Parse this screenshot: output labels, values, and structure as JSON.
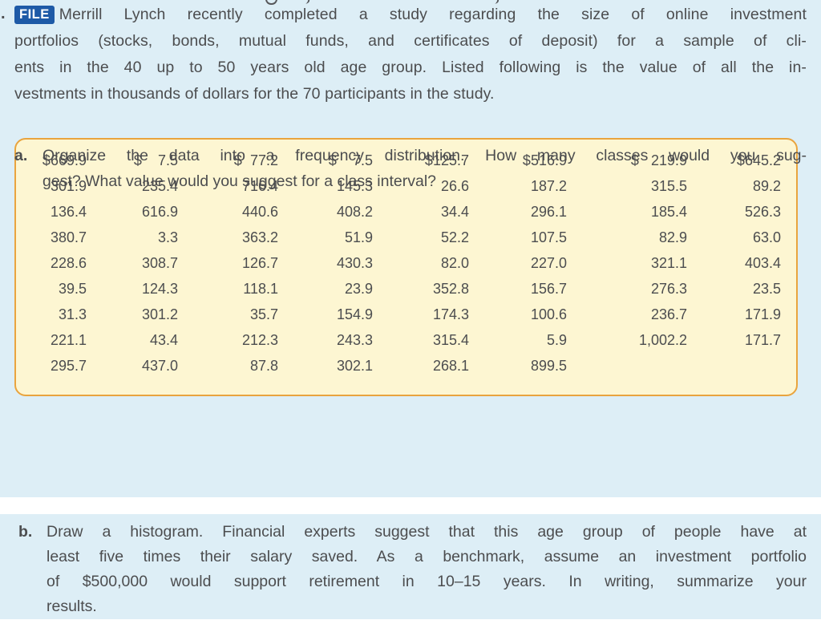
{
  "colors": {
    "section_bg": "#ddeef6",
    "badge_bg": "#1e5aa7",
    "badge_text": "#ffffff",
    "table_bg": "#fdf6d2",
    "table_border": "#e9a43e",
    "body_text": "#4c4d4f"
  },
  "intro": {
    "lead_mark": ".",
    "badge": "FILE",
    "lines": [
      "Merrill Lynch recently completed a study regarding the size of online investment",
      "portfolios (stocks, bonds, mutual funds, and certificates of deposit) for a sample of cli-",
      "ents in the 40 up to 50 years old age group. Listed following is the value of all the in-",
      "vestments in thousands of dollars for the 70 participants in the study."
    ]
  },
  "data_table": {
    "first_row": [
      {
        "sign": "$",
        "num": "669.9"
      },
      {
        "sign": "$",
        "num": "7.5"
      },
      {
        "sign": "$",
        "num": "77.2"
      },
      {
        "sign": "$",
        "num": "7.5"
      },
      {
        "sign": "$",
        "num": "125.7"
      },
      {
        "sign": "$",
        "num": "516.9"
      },
      {
        "sign": "$",
        "num": "219.9"
      },
      {
        "sign": "$",
        "num": "645.2"
      }
    ],
    "rows": [
      [
        "301.9",
        "235.4",
        "716.4",
        "145.3",
        "26.6",
        "187.2",
        "315.5",
        "89.2"
      ],
      [
        "136.4",
        "616.9",
        "440.6",
        "408.2",
        "34.4",
        "296.1",
        "185.4",
        "526.3"
      ],
      [
        "380.7",
        "3.3",
        "363.2",
        "51.9",
        "52.2",
        "107.5",
        "82.9",
        "63.0"
      ],
      [
        "228.6",
        "308.7",
        "126.7",
        "430.3",
        "82.0",
        "227.0",
        "321.1",
        "403.4"
      ],
      [
        "39.5",
        "124.3",
        "118.1",
        "23.9",
        "352.8",
        "156.7",
        "276.3",
        "23.5"
      ],
      [
        "31.3",
        "301.2",
        "35.7",
        "154.9",
        "174.3",
        "100.6",
        "236.7",
        "171.9"
      ],
      [
        "221.1",
        "43.4",
        "212.3",
        "243.3",
        "315.4",
        "5.9",
        "1,002.2",
        "171.7"
      ],
      [
        "295.7",
        "437.0",
        "87.8",
        "302.1",
        "268.1",
        "899.5",
        "",
        ""
      ]
    ]
  },
  "questions": [
    {
      "label": "a.",
      "lines": [
        "Organize the data into a frequency distribution. How many classes would you sug-",
        "gest? What value would you suggest for a class interval?"
      ]
    },
    {
      "label": "b.",
      "lines": [
        "Draw a histogram. Financial experts suggest that this age group of people have at",
        "least five times their salary saved. As a benchmark, assume an investment portfolio",
        "of $500,000 would support retirement in 10–15 years. In writing, summarize your",
        "results."
      ]
    }
  ]
}
